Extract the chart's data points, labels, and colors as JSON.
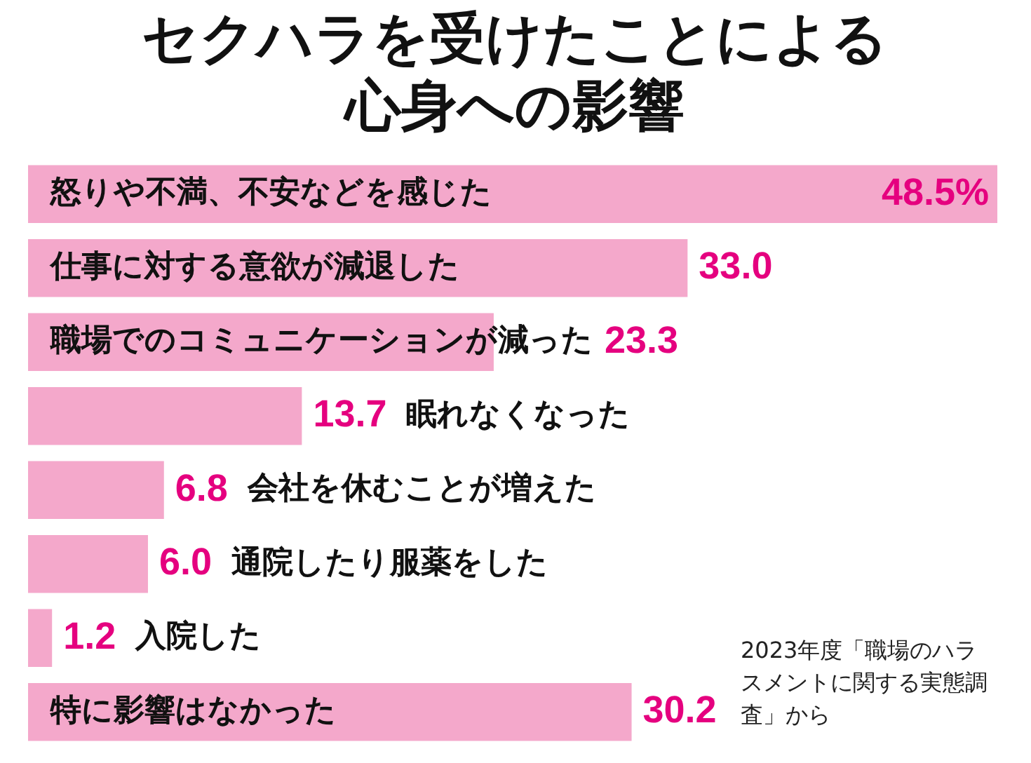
{
  "chart_data": {
    "type": "bar",
    "orientation": "horizontal",
    "title": "セクハラを受けたことによる心身への影響",
    "categories": [
      "怒りや不満、不安などを感じた",
      "仕事に対する意欲が減退した",
      "職場でのコミュニケーションが減った",
      "眠れなくなった",
      "会社を休むことが増えた",
      "通院したり服薬をした",
      "入院した",
      "特に影響はなかった"
    ],
    "values": [
      48.5,
      33.0,
      23.3,
      13.7,
      6.8,
      6.0,
      1.2,
      30.2
    ],
    "value_labels": [
      "48.5%",
      "33.0",
      "23.3",
      "13.7",
      "6.8",
      "6.0",
      "1.2",
      "30.2"
    ],
    "color": "#f4a8cb",
    "xlim": [
      0,
      48.5
    ],
    "annotations": [
      "2023年度「職場のハラスメントに関する実態調査」から"
    ]
  }
}
